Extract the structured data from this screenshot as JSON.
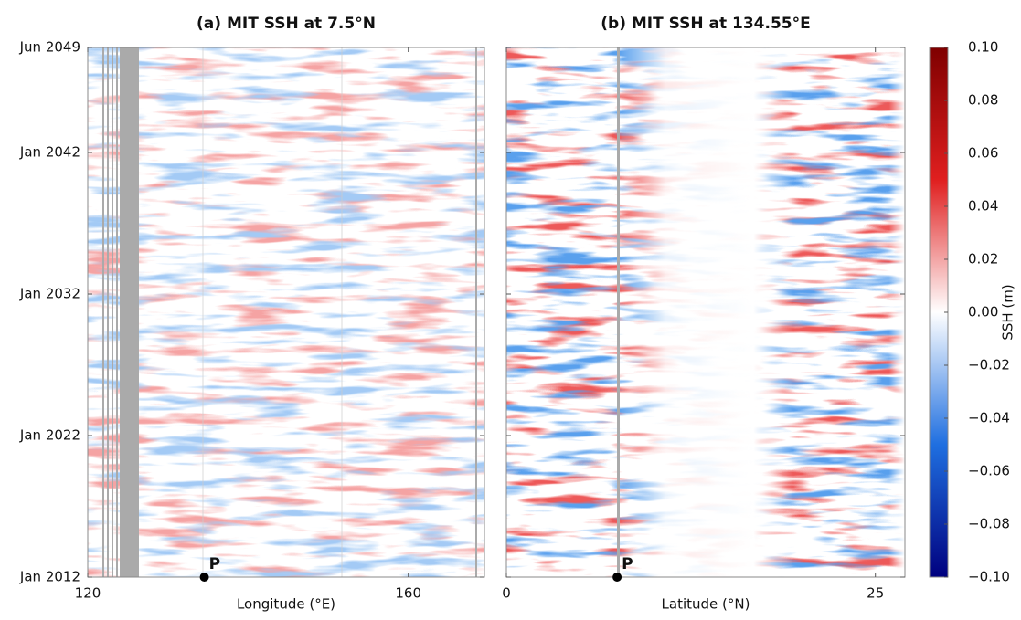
{
  "chart_data": [
    {
      "type": "heatmap",
      "title": "(a) MIT SSH at 7.5°N",
      "xlabel": "Longitude (°E)",
      "xlim": [
        120,
        169.5
      ],
      "xticks": [
        120,
        160
      ],
      "ylim": [
        2012,
        2049.42
      ],
      "yticks": [
        {
          "value": 2012,
          "label": "Jan 2012"
        },
        {
          "value": 2022,
          "label": "Jan 2022"
        },
        {
          "value": 2032,
          "label": "Jan 2032"
        },
        {
          "value": 2042,
          "label": "Jan 2042"
        },
        {
          "value": 2049.42,
          "label": "Jun 2049"
        }
      ],
      "annotation": {
        "text": "P",
        "x": 134.55
      }
    },
    {
      "type": "heatmap",
      "title": "(b) MIT SSH at 134.55°E",
      "xlabel": "Latitude (°N)",
      "xlim": [
        0,
        27
      ],
      "xticks": [
        0,
        25
      ],
      "ylim": [
        2012,
        2049.42
      ],
      "yticks": [
        2012,
        2022,
        2032,
        2042,
        2049.42
      ],
      "annotation": {
        "text": "P",
        "x": 7.5
      }
    },
    {
      "type": "colorbar",
      "label": "SSH (m)",
      "colors": [
        "#00007f",
        "#1f6fe0",
        "#ffffff",
        "#e01f1f",
        "#7f0000"
      ],
      "ylim": [
        -0.1,
        0.1
      ],
      "yticks": [
        {
          "value": 0.1,
          "label": "0.10"
        },
        {
          "value": 0.08,
          "label": "0.08"
        },
        {
          "value": 0.06,
          "label": "0.06"
        },
        {
          "value": 0.04,
          "label": "0.04"
        },
        {
          "value": 0.02,
          "label": "0.02"
        },
        {
          "value": 0,
          "label": "0.00"
        },
        {
          "value": -0.02,
          "label": "−0.02"
        },
        {
          "value": -0.04,
          "label": "−0.04"
        },
        {
          "value": -0.06,
          "label": "−0.06"
        },
        {
          "value": -0.08,
          "label": "−0.08"
        },
        {
          "value": -0.1,
          "label": "−0.10"
        }
      ]
    }
  ]
}
